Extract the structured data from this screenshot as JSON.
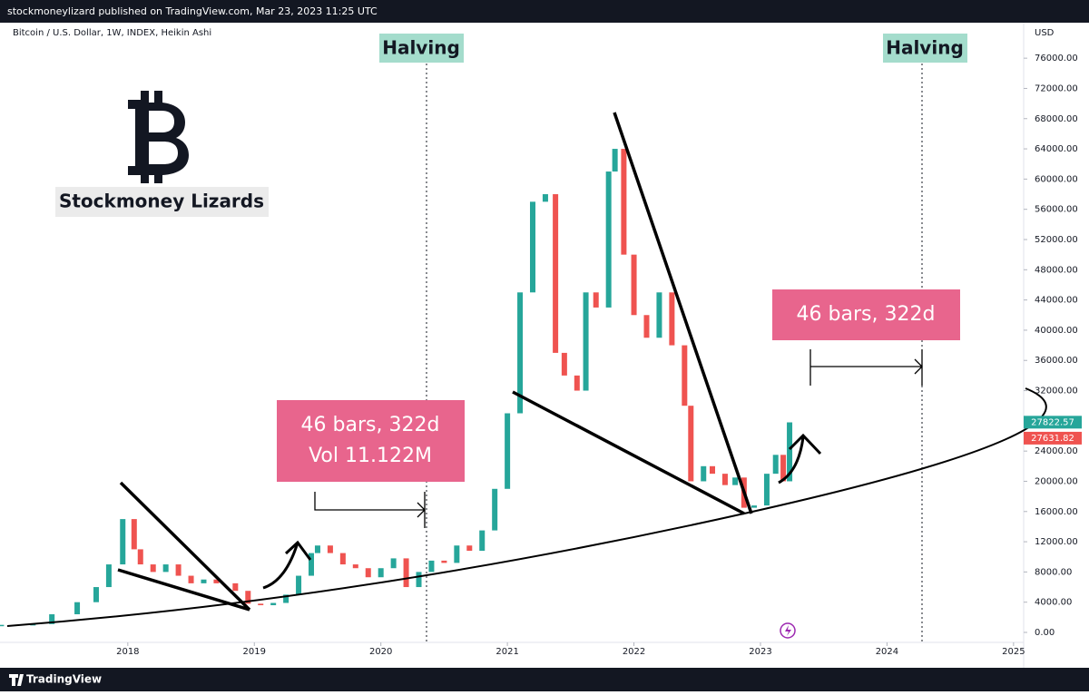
{
  "header": "stockmoneylizard published on TradingView.com, Mar 23, 2023 11:25 UTC",
  "footer": "TradingView",
  "chart_data": {
    "type": "candlestick",
    "title": "Bitcoin / U.S. Dollar, 1W, INDEX, Heikin Ashi",
    "y_label": "USD",
    "brand": "Stockmoney Lizards",
    "x": [
      2017.0,
      2017.25,
      2017.4,
      2017.6,
      2017.75,
      2017.85,
      2017.96,
      2018.05,
      2018.1,
      2018.2,
      2018.3,
      2018.4,
      2018.5,
      2018.6,
      2018.7,
      2018.85,
      2018.95,
      2019.05,
      2019.15,
      2019.25,
      2019.35,
      2019.45,
      2019.5,
      2019.6,
      2019.7,
      2019.8,
      2019.9,
      2020.0,
      2020.1,
      2020.2,
      2020.3,
      2020.4,
      2020.5,
      2020.6,
      2020.7,
      2020.8,
      2020.9,
      2021.0,
      2021.1,
      2021.2,
      2021.3,
      2021.38,
      2021.45,
      2021.55,
      2021.62,
      2021.7,
      2021.8,
      2021.85,
      2021.92,
      2022.0,
      2022.1,
      2022.2,
      2022.3,
      2022.4,
      2022.45,
      2022.55,
      2022.62,
      2022.72,
      2022.8,
      2022.87,
      2022.95,
      2023.05,
      2023.12,
      2023.18,
      2023.23
    ],
    "values": [
      1000,
      1100,
      2400,
      4000,
      6000,
      9000,
      15000,
      11000,
      9000,
      8000,
      9000,
      7500,
      6500,
      7000,
      6500,
      5500,
      3800,
      3600,
      3900,
      5000,
      7500,
      10500,
      11500,
      10500,
      9000,
      8500,
      7300,
      8500,
      9800,
      6000,
      8000,
      9500,
      9200,
      11500,
      10800,
      13500,
      19000,
      29000,
      45000,
      57000,
      58000,
      37000,
      34000,
      32000,
      45000,
      43000,
      61000,
      64000,
      50000,
      42000,
      39000,
      45000,
      38000,
      30000,
      20000,
      22000,
      21000,
      19500,
      20500,
      16500,
      16800,
      21000,
      23500,
      20000,
      27800
    ],
    "up_color": "#26a69a",
    "down_color": "#ef5350",
    "xlim": [
      2016.99,
      2025.08
    ],
    "xticks": [
      2018,
      2019,
      2020,
      2021,
      2022,
      2023,
      2024,
      2025
    ],
    "ylim": [
      -1560,
      80700
    ],
    "yticks": [
      {
        "value": 0,
        "label": "0.00"
      },
      {
        "value": 4000,
        "label": "4000.00"
      },
      {
        "value": 8000,
        "label": "8000.00"
      },
      {
        "value": 12000,
        "label": "12000.00"
      },
      {
        "value": 16000,
        "label": "16000.00"
      },
      {
        "value": 20000,
        "label": "20000.00"
      },
      {
        "value": 24000,
        "label": "24000.00"
      },
      {
        "value": 28000,
        "label": "28000.00"
      },
      {
        "value": 32000,
        "label": "32000.00"
      },
      {
        "value": 36000,
        "label": "36000.00"
      },
      {
        "value": 40000,
        "label": "40000.00"
      },
      {
        "value": 44000,
        "label": "44000.00"
      },
      {
        "value": 48000,
        "label": "48000.00"
      },
      {
        "value": 52000,
        "label": "52000.00"
      },
      {
        "value": 56000,
        "label": "56000.00"
      },
      {
        "value": 60000,
        "label": "60000.00"
      },
      {
        "value": 64000,
        "label": "64000.00"
      },
      {
        "value": 68000,
        "label": "68000.00"
      },
      {
        "value": 72000,
        "label": "72000.00"
      },
      {
        "value": 76000,
        "label": "76000.00"
      }
    ],
    "price_markers": [
      {
        "value": 27822.57,
        "color": "#26a69a"
      },
      {
        "value": 27631.82,
        "color": "#ef5350"
      }
    ],
    "annotations": {
      "halving": [
        "Halving",
        "Halving"
      ],
      "measure_1": [
        "46 bars, 322d",
        "Vol 11.122M"
      ],
      "measure_2": [
        "46 bars, 322d"
      ]
    }
  }
}
